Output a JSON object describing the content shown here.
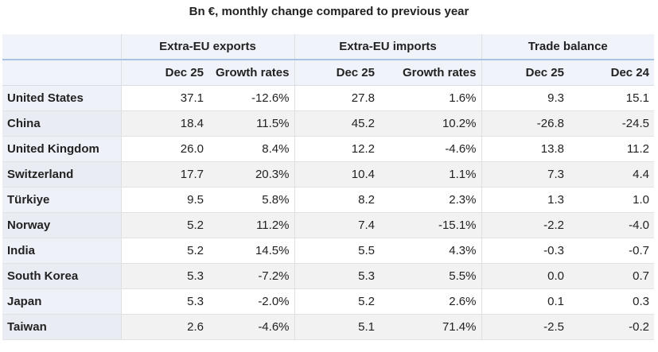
{
  "title": "Bn €, monthly change compared to previous year",
  "table": {
    "groups": [
      "Extra-EU exports",
      "Extra-EU imports",
      "Trade balance"
    ],
    "columns": [
      "Dec 25",
      "Growth rates",
      "Dec 25",
      "Growth rates",
      "Dec 25",
      "Dec 24"
    ],
    "rows": [
      [
        "United States",
        "37.1",
        "-12.6%",
        "27.8",
        "1.6%",
        "9.3",
        "15.1"
      ],
      [
        "China",
        "18.4",
        "11.5%",
        "45.2",
        "10.2%",
        "-26.8",
        "-24.5"
      ],
      [
        "United Kingdom",
        "26.0",
        "8.4%",
        "12.2",
        "-4.6%",
        "13.8",
        "11.2"
      ],
      [
        "Switzerland",
        "17.7",
        "20.3%",
        "10.4",
        "1.1%",
        "7.3",
        "4.4"
      ],
      [
        "Türkiye",
        "9.5",
        "5.8%",
        "8.2",
        "2.3%",
        "1.3",
        "1.0"
      ],
      [
        "Norway",
        "5.2",
        "11.2%",
        "7.4",
        "-15.1%",
        "-2.2",
        "-4.0"
      ],
      [
        "India",
        "5.2",
        "14.5%",
        "5.5",
        "4.3%",
        "-0.3",
        "-0.7"
      ],
      [
        "South Korea",
        "5.3",
        "-7.2%",
        "5.3",
        "5.5%",
        "0.0",
        "0.7"
      ],
      [
        "Japan",
        "5.3",
        "-2.0%",
        "5.2",
        "2.6%",
        "0.1",
        "0.3"
      ],
      [
        "Taiwan",
        "2.6",
        "-4.6%",
        "5.1",
        "71.4%",
        "-2.5",
        "-0.2"
      ]
    ]
  }
}
